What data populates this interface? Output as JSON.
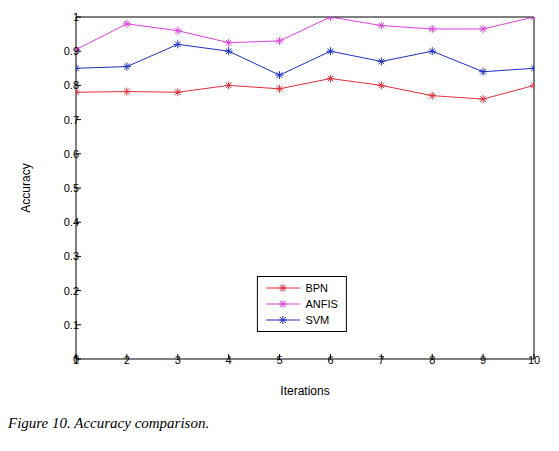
{
  "chart_data": {
    "type": "line",
    "caption": "Figure 10. Accuracy comparison.",
    "x_label": "Iterations",
    "y_label": "Accuracy",
    "x": [
      1,
      2,
      3,
      4,
      5,
      6,
      7,
      8,
      9,
      10
    ],
    "xlim": [
      1,
      10
    ],
    "xticks": [
      1,
      2,
      3,
      4,
      5,
      6,
      7,
      8,
      9,
      10
    ],
    "ylim": [
      0,
      1
    ],
    "yticks": [
      0,
      0.1,
      0.2,
      0.3,
      0.4,
      0.5,
      0.6,
      0.7,
      0.8,
      0.9,
      1
    ],
    "grid": false,
    "legend": "bottom",
    "marker": "star",
    "series": [
      {
        "name": "BPN",
        "color": "#e0303c",
        "values": [
          0.78,
          0.782,
          0.78,
          0.8,
          0.79,
          0.82,
          0.8,
          0.77,
          0.76,
          0.8
        ]
      },
      {
        "name": "ANFIS",
        "color": "#e040e0",
        "values": [
          0.905,
          0.98,
          0.96,
          0.925,
          0.93,
          1.0,
          0.975,
          0.965,
          0.965,
          1.0
        ]
      },
      {
        "name": "SVM",
        "color": "#2030c0",
        "values": [
          0.85,
          0.855,
          0.92,
          0.9,
          0.83,
          0.9,
          0.87,
          0.9,
          0.84,
          0.85
        ]
      }
    ]
  }
}
